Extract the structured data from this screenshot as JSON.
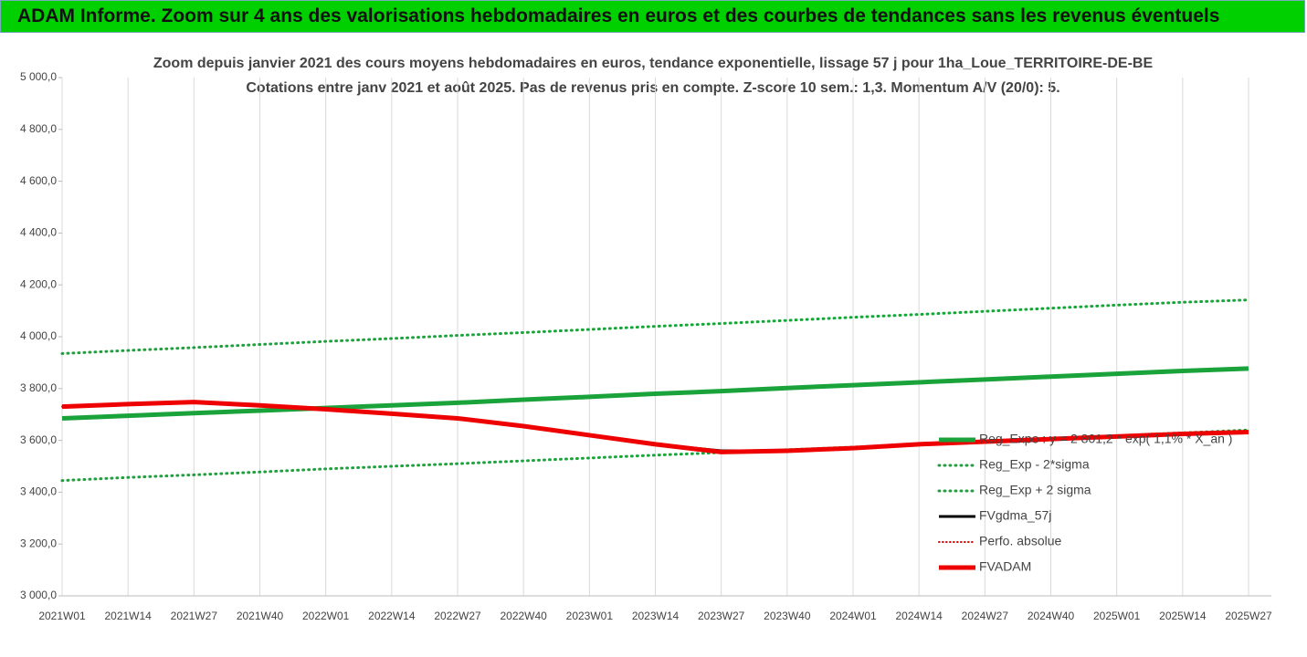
{
  "header": {
    "title": "ADAM Informe. Zoom sur 4 ans des valorisations hebdomadaires en euros et des courbes de tendances sans les revenus éventuels"
  },
  "chart_data": {
    "type": "line",
    "title": "Zoom depuis janvier 2021 des cours moyens hebdomadaires en euros, tendance exponentielle, lissage 57 j pour 1ha_Loue_TERRITOIRE-DE-BE",
    "subtitle": "Cotations entre janv 2021 et août 2025.  Pas de revenus pris en compte. Z-score 10 sem.: 1,3. Momentum A/V (20/0): 5.",
    "categories": [
      "2021W01",
      "2021W14",
      "2021W27",
      "2021W40",
      "2022W01",
      "2022W14",
      "2022W27",
      "2022W40",
      "2023W01",
      "2023W14",
      "2023W27",
      "2023W40",
      "2024W01",
      "2024W14",
      "2024W27",
      "2024W40",
      "2025W01",
      "2025W14",
      "2025W27"
    ],
    "ylim": [
      3000,
      5000
    ],
    "yticks": [
      {
        "value": 3000,
        "label": "3 000,0"
      },
      {
        "value": 3200,
        "label": "3 200,0"
      },
      {
        "value": 3400,
        "label": "3 400,0"
      },
      {
        "value": 3600,
        "label": "3 600,0"
      },
      {
        "value": 3800,
        "label": "3 800,0"
      },
      {
        "value": 4000,
        "label": "4 000,0"
      },
      {
        "value": 4200,
        "label": "4 200,0"
      },
      {
        "value": 4400,
        "label": "4 400,0"
      },
      {
        "value": 4600,
        "label": "4 600,0"
      },
      {
        "value": 4800,
        "label": "4 800,0"
      },
      {
        "value": 5000,
        "label": "5 000,0"
      }
    ],
    "grid": "x",
    "legend": "right",
    "series": [
      {
        "name": "Reg_Expo : y = 2 801,2 * exp( 1,1% * X_an )",
        "color": "#1aa33a",
        "style": "solid",
        "width": 5,
        "values": [
          3685,
          3695,
          3705,
          3715,
          3725,
          3735,
          3745,
          3757,
          3768,
          3780,
          3790,
          3802,
          3813,
          3824,
          3835,
          3846,
          3857,
          3868,
          3877
        ]
      },
      {
        "name": "Reg_Exp - 2*sigma",
        "color": "#1aa33a",
        "style": "dotted",
        "width": 3,
        "values": [
          3445,
          3457,
          3467,
          3478,
          3490,
          3500,
          3510,
          3521,
          3532,
          3543,
          3553,
          3564,
          3574,
          3585,
          3596,
          3607,
          3618,
          3629,
          3640
        ]
      },
      {
        "name": "Reg_Exp + 2 sigma",
        "color": "#1aa33a",
        "style": "dotted",
        "width": 3,
        "values": [
          3935,
          3947,
          3958,
          3970,
          3982,
          3993,
          4005,
          4016,
          4028,
          4040,
          4051,
          4063,
          4075,
          4086,
          4098,
          4110,
          4122,
          4133,
          4142
        ]
      },
      {
        "name": "FVgdma_57j",
        "color": "#000000",
        "style": "solid",
        "width": 3,
        "values": [
          3730,
          3740,
          3748,
          3735,
          3720,
          3703,
          3685,
          3655,
          3620,
          3585,
          3560,
          3560,
          3570,
          3585,
          3595,
          3605,
          3615,
          3625,
          3632
        ]
      },
      {
        "name": "Perfo. absolue",
        "color": "#e00000",
        "style": "dotted",
        "width": 2,
        "values": [
          3730,
          3740,
          3748,
          3735,
          3720,
          3703,
          3685,
          3655,
          3620,
          3585,
          3555,
          3560,
          3570,
          3585,
          3595,
          3605,
          3615,
          3625,
          3632
        ]
      },
      {
        "name": "FVADAM",
        "color": "#ee0000",
        "style": "solid",
        "width": 5,
        "values": [
          3730,
          3740,
          3748,
          3735,
          3720,
          3703,
          3685,
          3655,
          3620,
          3585,
          3555,
          3560,
          3570,
          3585,
          3595,
          3605,
          3615,
          3625,
          3632
        ]
      }
    ]
  }
}
